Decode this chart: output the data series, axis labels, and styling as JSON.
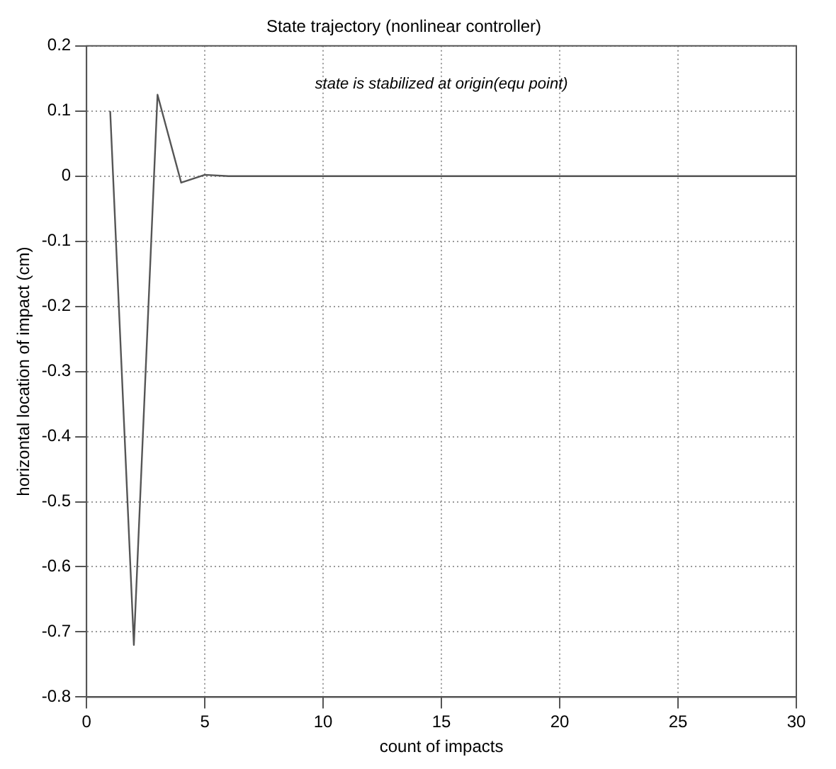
{
  "chart_data": {
    "type": "line",
    "title": "State trajectory (nonlinear controller)",
    "xlabel": "count of impacts",
    "ylabel": "horizontal location of impact (cm)",
    "annotations": [
      "state is stabilized at origin(equ point)"
    ],
    "x": [
      1,
      2,
      3,
      4,
      5,
      6,
      7,
      8,
      9,
      10,
      11,
      12,
      13,
      14,
      15,
      16,
      17,
      18,
      19,
      20,
      21,
      22,
      23,
      24,
      25,
      26,
      27,
      28,
      29,
      30
    ],
    "series": [
      {
        "color": "#555555",
        "values": [
          0.1,
          -0.72,
          0.125,
          -0.01,
          0.002,
          0,
          0,
          0,
          0,
          0,
          0,
          0,
          0,
          0,
          0,
          0,
          0,
          0,
          0,
          0,
          0,
          0,
          0,
          0,
          0,
          0,
          0,
          0,
          0,
          0
        ]
      }
    ],
    "xlim": [
      0,
      30
    ],
    "xticks": [
      0,
      5,
      10,
      15,
      20,
      25,
      30
    ],
    "ylim": [
      -0.8,
      0.2
    ],
    "yticks": [
      -0.8,
      -0.7,
      -0.6,
      -0.5,
      -0.4,
      -0.3,
      -0.2,
      -0.1,
      0,
      0.1,
      0.2
    ],
    "grid": true,
    "legend": false,
    "marker": "none",
    "line_style": "solid"
  }
}
